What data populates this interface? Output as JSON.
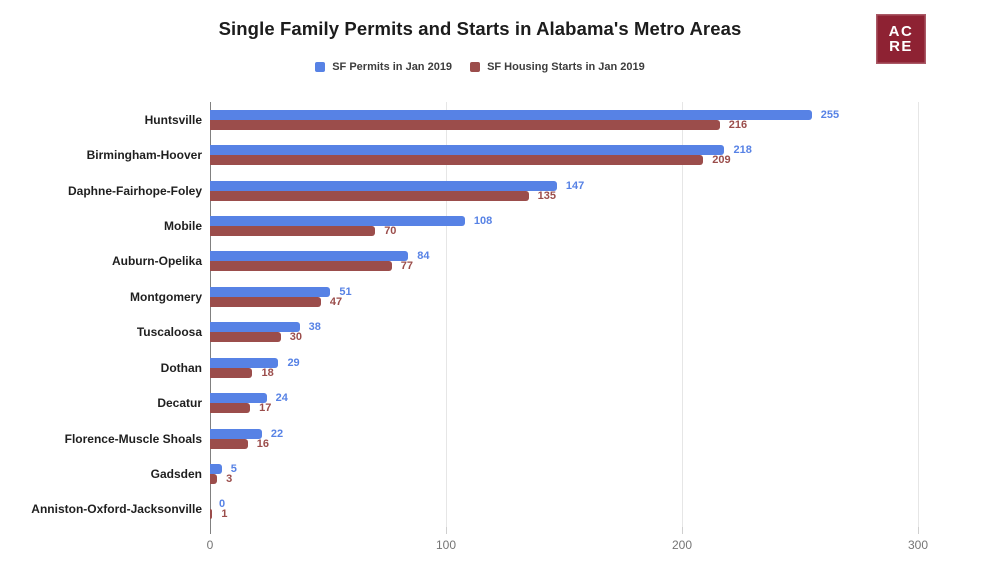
{
  "header": {
    "title": "Single Family Permits and Starts in Alabama's Metro Areas"
  },
  "logo": {
    "line1": "AC",
    "line2": "RE",
    "color": "#8e2233"
  },
  "legend": [
    {
      "label": "SF Permits in Jan 2019",
      "color": "#5782e5"
    },
    {
      "label": "SF Housing Starts in Jan 2019",
      "color": "#9b4d4b"
    }
  ],
  "chart_data": {
    "type": "bar",
    "orientation": "horizontal",
    "title": "Single Family Permits and Starts in Alabama's Metro Areas",
    "categories": [
      "Huntsville",
      "Birmingham-Hoover",
      "Daphne-Fairhope-Foley",
      "Mobile",
      "Auburn-Opelika",
      "Montgomery",
      "Tuscaloosa",
      "Dothan",
      "Decatur",
      "Florence-Muscle Shoals",
      "Gadsden",
      "Anniston-Oxford-Jacksonville"
    ],
    "series": [
      {
        "name": "SF Permits in Jan 2019",
        "color": "#5782e5",
        "values": [
          255,
          218,
          147,
          108,
          84,
          51,
          38,
          29,
          24,
          22,
          5,
          0
        ]
      },
      {
        "name": "SF Housing Starts in Jan 2019",
        "color": "#9b4d4b",
        "values": [
          216,
          209,
          135,
          70,
          77,
          47,
          30,
          18,
          17,
          16,
          3,
          1
        ]
      }
    ],
    "x_ticks": [
      0,
      100,
      200,
      300
    ],
    "xlim": [
      0,
      318
    ],
    "grid": true,
    "legend_position": "top",
    "value_labels": true
  }
}
